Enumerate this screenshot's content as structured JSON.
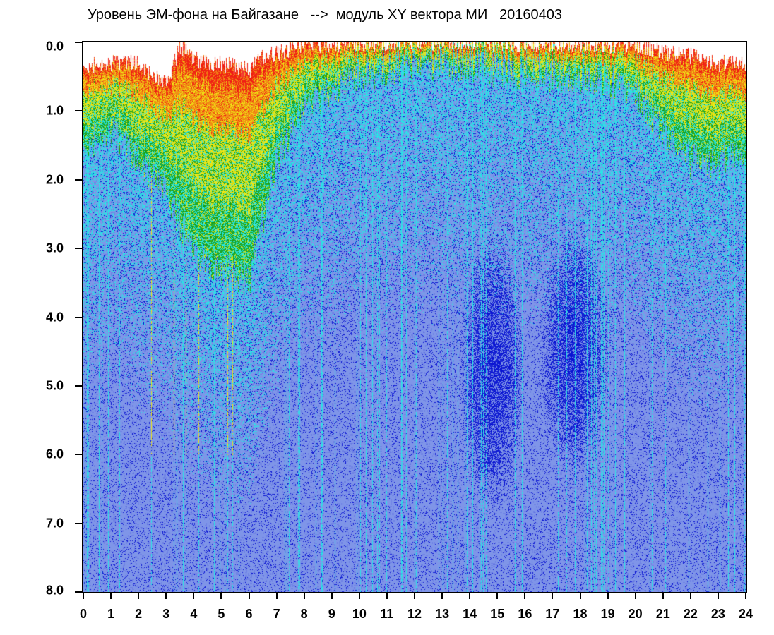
{
  "chart_data": {
    "type": "heatmap",
    "title": "Уровень ЭМ-фона на Байгазане   -->  модуль XY вектора МИ   20160403",
    "xlabel": "",
    "ylabel": "",
    "x_ticks": [
      "0",
      "1",
      "2",
      "3",
      "4",
      "5",
      "6",
      "7",
      "8",
      "9",
      "10",
      "11",
      "12",
      "13",
      "14",
      "15",
      "16",
      "17",
      "18",
      "19",
      "20",
      "21",
      "22",
      "23",
      "24"
    ],
    "y_ticks": [
      "0.0",
      "1.0",
      "2.0",
      "3.0",
      "4.0",
      "5.0",
      "6.0",
      "7.0",
      "8.0"
    ],
    "xlim": [
      0,
      24
    ],
    "ylim": [
      0,
      8
    ],
    "y_inverted": true,
    "grid": false,
    "colorscale": [
      "#0a14d2",
      "#7f95e8",
      "#28e6e6",
      "#19a019",
      "#f0e614",
      "#f08c14",
      "#f01e14"
    ],
    "upper_envelope_depth_by_hour": [
      {
        "x": 0,
        "y": 0.35
      },
      {
        "x": 1,
        "y": 0.3
      },
      {
        "x": 2,
        "y": 0.3
      },
      {
        "x": 2.5,
        "y": 0.5
      },
      {
        "x": 3,
        "y": 0.6
      },
      {
        "x": 3.5,
        "y": 0.05
      },
      {
        "x": 4,
        "y": 0.25
      },
      {
        "x": 5,
        "y": 0.3
      },
      {
        "x": 6,
        "y": 0.4
      },
      {
        "x": 6.5,
        "y": 0.2
      },
      {
        "x": 7,
        "y": 0.15
      },
      {
        "x": 8,
        "y": 0.05
      },
      {
        "x": 9,
        "y": 0.05
      },
      {
        "x": 10,
        "y": 0.0
      },
      {
        "x": 12,
        "y": 0.02
      },
      {
        "x": 14,
        "y": 0.0
      },
      {
        "x": 16,
        "y": 0.02
      },
      {
        "x": 18,
        "y": 0.02
      },
      {
        "x": 20,
        "y": 0.05
      },
      {
        "x": 21,
        "y": 0.15
      },
      {
        "x": 22,
        "y": 0.2
      },
      {
        "x": 23,
        "y": 0.3
      },
      {
        "x": 24,
        "y": 0.3
      }
    ],
    "warm_band_depth_by_hour": [
      {
        "x": 0,
        "y": 1.4
      },
      {
        "x": 1,
        "y": 1.2
      },
      {
        "x": 2,
        "y": 1.6
      },
      {
        "x": 3,
        "y": 2.0
      },
      {
        "x": 4,
        "y": 2.8
      },
      {
        "x": 5,
        "y": 3.0
      },
      {
        "x": 6,
        "y": 3.2
      },
      {
        "x": 7,
        "y": 1.5
      },
      {
        "x": 8,
        "y": 0.9
      },
      {
        "x": 10,
        "y": 0.4
      },
      {
        "x": 13,
        "y": 0.3
      },
      {
        "x": 16,
        "y": 0.4
      },
      {
        "x": 19,
        "y": 0.5
      },
      {
        "x": 20,
        "y": 0.7
      },
      {
        "x": 21,
        "y": 1.2
      },
      {
        "x": 22,
        "y": 1.6
      },
      {
        "x": 23,
        "y": 1.6
      },
      {
        "x": 24,
        "y": 1.5
      }
    ],
    "dense_low_regions": [
      {
        "x_center": 14.8,
        "y_center": 4.8,
        "x_halfwidth": 1.2,
        "y_halfwidth": 2.0
      },
      {
        "x_center": 17.8,
        "y_center": 4.5,
        "x_halfwidth": 1.3,
        "y_halfwidth": 1.8
      }
    ]
  }
}
